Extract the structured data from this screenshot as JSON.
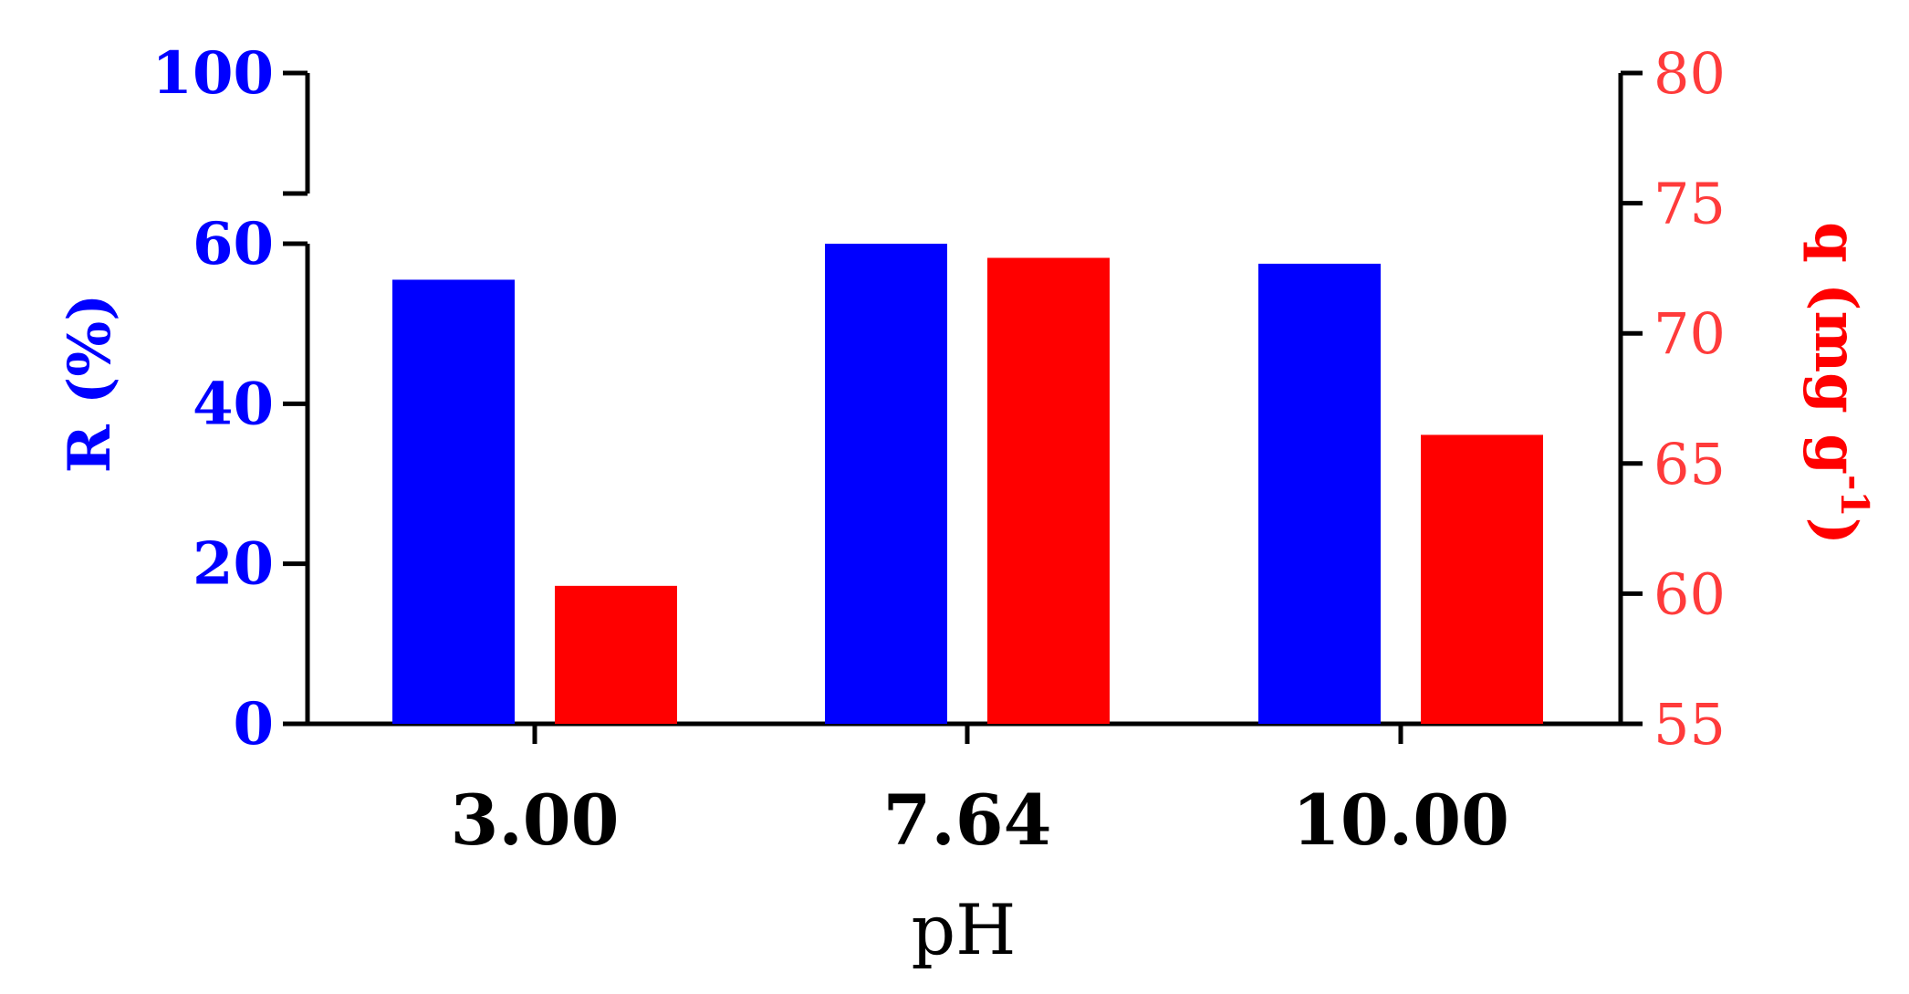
{
  "chart_data": {
    "type": "bar",
    "xlabel": "pH",
    "categories": [
      "3.00",
      "7.64",
      "10.00"
    ],
    "left_axis": {
      "label": "R (%)",
      "color": "#0000ff",
      "ticks": [
        "0",
        "20",
        "40",
        "60",
        "100"
      ],
      "ylim": [
        0,
        100
      ],
      "axis_break": [
        60,
        100
      ]
    },
    "right_axis": {
      "label_main": "q (mg g",
      "label_sup": "-1",
      "label_close": ")",
      "color": "#ff3b3b",
      "ticks": [
        "55",
        "60",
        "65",
        "70",
        "75",
        "80"
      ],
      "ylim": [
        55,
        80
      ]
    },
    "series": [
      {
        "name": "R (%)",
        "axis": "left",
        "color": "#0000ff",
        "values": [
          55.5,
          60.0,
          57.5
        ]
      },
      {
        "name": "q (mg g-1)",
        "axis": "right",
        "color": "#ff0000",
        "values": [
          60.3,
          72.9,
          66.1
        ]
      }
    ]
  }
}
